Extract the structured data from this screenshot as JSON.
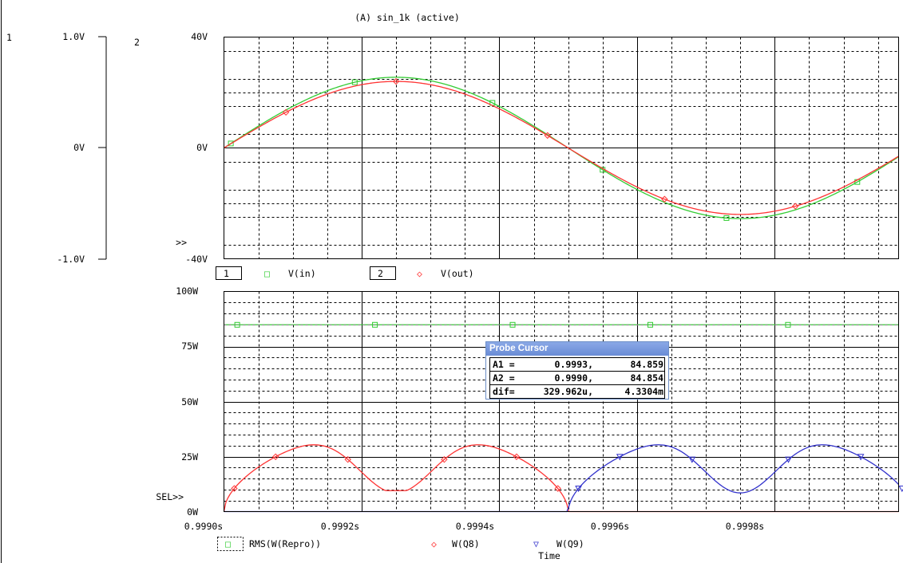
{
  "title": "(A) sin_1k (active)",
  "top_plot": {
    "axis1": {
      "label": "1",
      "ticks": [
        "1.0V",
        "0V",
        "-1.0V"
      ]
    },
    "axis2": {
      "label": "2",
      "ticks": [
        "40V",
        "0V",
        "-40V"
      ],
      "marker": ">>"
    },
    "legend": [
      {
        "index": "1",
        "name": "V(in)",
        "symbol": "□",
        "color": "#33cc33"
      },
      {
        "index": "2",
        "name": "V(out)",
        "symbol": "◇",
        "color": "#ff3333"
      }
    ]
  },
  "bottom_plot": {
    "ticks": [
      "100W",
      "75W",
      "50W",
      "25W",
      "0W"
    ],
    "sel_marker": "SEL>>",
    "legend": [
      {
        "name": "RMS(W(Repro))",
        "symbol": "□",
        "color": "#33cc33"
      },
      {
        "name": "W(Q8)",
        "symbol": "◇",
        "color": "#ff3333"
      },
      {
        "name": "W(Q9)",
        "symbol": "▽",
        "color": "#3333cc"
      }
    ]
  },
  "x_axis": {
    "label": "Time",
    "ticks": [
      "0.9990s",
      "0.9992s",
      "0.9994s",
      "0.9996s",
      "0.9998s"
    ]
  },
  "probe_cursor": {
    "title": "Probe Cursor",
    "rows": [
      {
        "label": "A1 =",
        "v1": "0.9993,",
        "v2": "84.859"
      },
      {
        "label": "A2 =",
        "v1": "0.9990,",
        "v2": "84.854"
      },
      {
        "label": "dif=",
        "v1": "329.962u,",
        "v2": "4.3304m"
      }
    ]
  },
  "chart_data": [
    {
      "type": "line",
      "x_unit": "s",
      "xlim": [
        0.999,
        0.99998
      ],
      "ylim": [
        -40,
        40
      ],
      "grid": true,
      "series": [
        {
          "name": "V(in)",
          "color": "#33cc33",
          "amplitude": 25.5,
          "frequency": 1000,
          "x": [
            0.999,
            0.99925,
            0.9995,
            0.99975,
            0.99998
          ],
          "values": [
            0,
            25.5,
            0,
            -25.5,
            -0.3
          ]
        },
        {
          "name": "V(out)",
          "color": "#ff3333",
          "amplitude": 24.0,
          "frequency": 1000,
          "x": [
            0.999,
            0.99925,
            0.9995,
            0.99975,
            0.99998
          ],
          "values": [
            0,
            24.0,
            0,
            -24.0,
            -0.3
          ]
        }
      ]
    },
    {
      "type": "line",
      "x_unit": "s",
      "xlim": [
        0.999,
        0.99998
      ],
      "ylim": [
        0,
        100
      ],
      "grid": true,
      "series": [
        {
          "name": "RMS(W(Repro))",
          "color": "#33cc33",
          "x": [
            0.999,
            0.99998
          ],
          "values": [
            84.86,
            84.86
          ]
        },
        {
          "name": "W(Q8)",
          "color": "#ff3333",
          "peak": 38.5,
          "trough": 9.5,
          "active_range": [
            0.999,
            0.9995
          ]
        },
        {
          "name": "W(Q9)",
          "color": "#3333cc",
          "peak": 38.5,
          "trough": 8.5,
          "active_range": [
            0.9995,
            1.0
          ]
        }
      ]
    }
  ]
}
